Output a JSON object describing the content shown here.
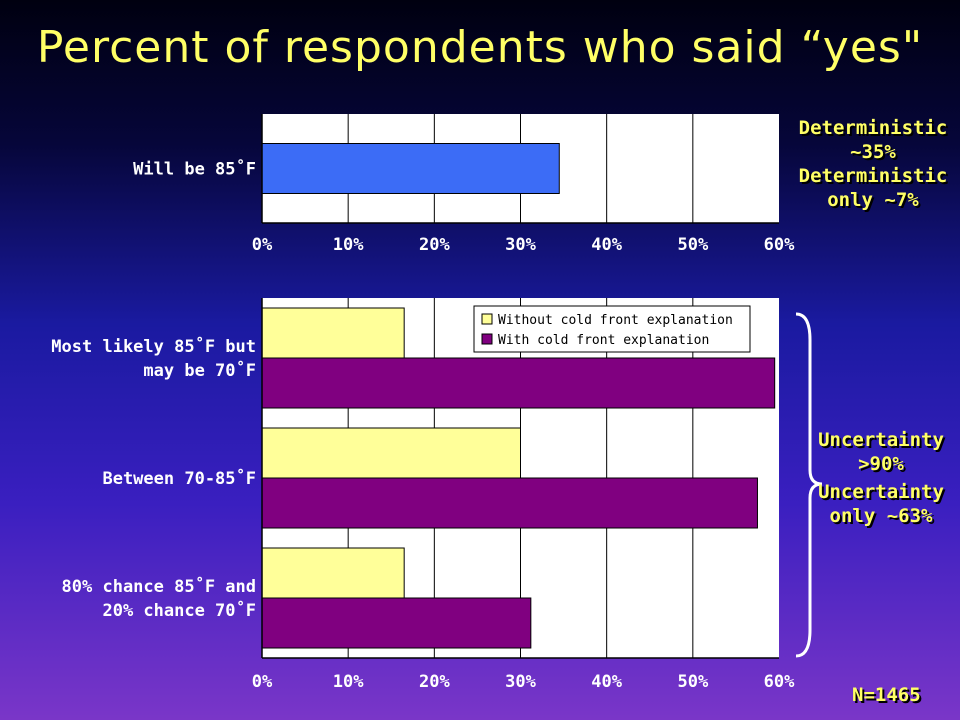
{
  "title": "Percent of respondents who said “yes\"",
  "annotations": {
    "deterministic_line1": "Deterministic",
    "deterministic_line2": "~35%",
    "deterministic_only_line1": "Deterministic",
    "deterministic_only_line2": "only ~7%",
    "uncertainty_line1": "Uncertainty",
    "uncertainty_line2": ">90%",
    "uncertainty_only_line1": "Uncertainty",
    "uncertainty_only_line2": "only ~63%",
    "sample_size": "N=1465"
  },
  "colors": {
    "deterministic_bar": "#3c6cf6",
    "without_explanation": "#ffff99",
    "with_explanation": "#800080",
    "label_text": "#ffffff",
    "annotation_text": "#ffff66",
    "plot_background": "#ffffff"
  },
  "chart_data": [
    {
      "type": "bar",
      "orientation": "horizontal",
      "categories": [
        "Will be 85˚F"
      ],
      "series": [
        {
          "values": [
            34.5
          ]
        }
      ],
      "xlim": [
        0,
        60
      ],
      "ticks": [
        "0%",
        "10%",
        "20%",
        "30%",
        "40%",
        "50%",
        "60%"
      ],
      "grid": true
    },
    {
      "type": "bar",
      "orientation": "horizontal",
      "categories": [
        [
          "Most likely 85˚F but",
          "may be 70˚F"
        ],
        [
          "Between 70-85˚F"
        ],
        [
          "80% chance 85˚F and",
          "20% chance 70˚F"
        ]
      ],
      "series": [
        {
          "name": "Without cold front explanation",
          "values": [
            16.5,
            30,
            16.5
          ]
        },
        {
          "name": "With cold front explanation",
          "values": [
            59.5,
            57.5,
            31.2
          ]
        }
      ],
      "xlim": [
        0,
        60
      ],
      "ticks": [
        "0%",
        "10%",
        "20%",
        "30%",
        "40%",
        "50%",
        "60%"
      ],
      "grid": true,
      "legend": "top-right"
    }
  ]
}
